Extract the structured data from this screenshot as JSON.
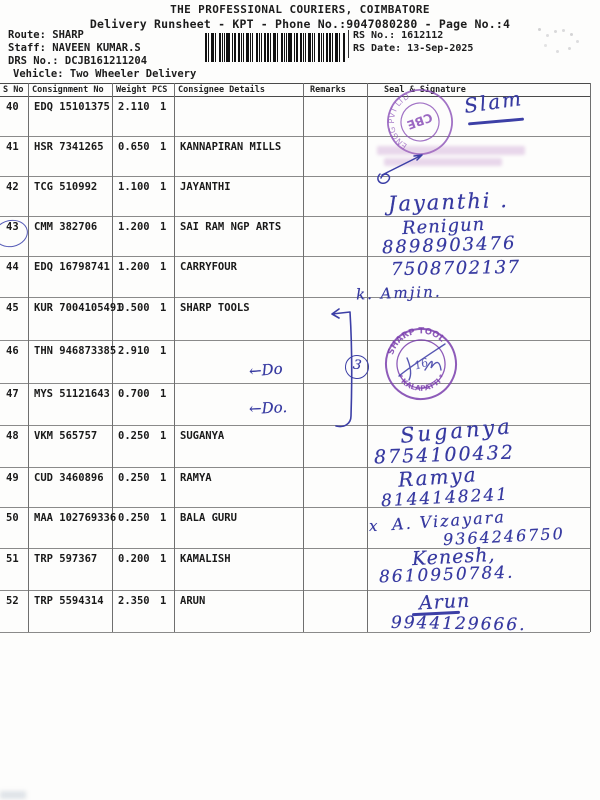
{
  "doc": {
    "title": "THE PROFESSIONAL COURIERS, COIMBATORE",
    "subtitle": "Delivery Runsheet - KPT - Phone No.:9047080280 - Page No.:4",
    "route_line": "Route: SHARP",
    "staff_line": "Staff: NAVEEN KUMAR.S",
    "drs_line": "DRS No.: DCJB161211204",
    "vehicle_line": "Vehicle: Two Wheeler Delivery",
    "rs_no_line": "RS No.: 1612112",
    "rs_date_line": "RS Date: 13-Sep-2025"
  },
  "table": {
    "headers": {
      "sno": "S No",
      "consignment": "Consignment No",
      "weight": "Weight",
      "pcs": "PCS",
      "consignee": "Consignee Details",
      "remarks": "Remarks",
      "seal": "Seal & Signature"
    },
    "rows": [
      {
        "sno": "40",
        "consignment": "EDQ 15101375",
        "weight": "2.110",
        "pcs": "1",
        "consignee": ""
      },
      {
        "sno": "41",
        "consignment": "HSR 7341265",
        "weight": "0.650",
        "pcs": "1",
        "consignee": "KANNAPIRAN MILLS"
      },
      {
        "sno": "42",
        "consignment": "TCG 510992",
        "weight": "1.100",
        "pcs": "1",
        "consignee": "JAYANTHI"
      },
      {
        "sno": "43",
        "consignment": "CMM 382706",
        "weight": "1.200",
        "pcs": "1",
        "consignee": "SAI RAM NGP ARTS"
      },
      {
        "sno": "44",
        "consignment": "EDQ 16798741",
        "weight": "1.200",
        "pcs": "1",
        "consignee": "CARRYFOUR"
      },
      {
        "sno": "45",
        "consignment": "KUR 7004105491",
        "weight": "0.500",
        "pcs": "1",
        "consignee": "SHARP TOOLS"
      },
      {
        "sno": "46",
        "consignment": "THN 946873385",
        "weight": "2.910",
        "pcs": "1",
        "consignee": ""
      },
      {
        "sno": "47",
        "consignment": "MYS 51121643",
        "weight": "0.700",
        "pcs": "1",
        "consignee": ""
      },
      {
        "sno": "48",
        "consignment": "VKM 565757",
        "weight": "0.250",
        "pcs": "1",
        "consignee": "SUGANYA"
      },
      {
        "sno": "49",
        "consignment": "CUD 3460896",
        "weight": "0.250",
        "pcs": "1",
        "consignee": "RAMYA"
      },
      {
        "sno": "50",
        "consignment": "MAA 102769336",
        "weight": "0.250",
        "pcs": "1",
        "consignee": "BALA GURU"
      },
      {
        "sno": "51",
        "consignment": "TRP 597367",
        "weight": "0.200",
        "pcs": "1",
        "consignee": "KAMALISH"
      },
      {
        "sno": "52",
        "consignment": "TRP 5594314",
        "weight": "2.350",
        "pcs": "1",
        "consignee": "ARUN"
      }
    ]
  },
  "handwriting": {
    "row40_signature": "Slam",
    "row42_signature": "Jayanthi .",
    "row43_signature": "Renigun",
    "row43_phone": "8898903476",
    "row44_phone": "7508702137",
    "row44_signature": "k. Amjin.",
    "row46_do": "←Do",
    "row47_do": "←Do.",
    "tally_count": "3",
    "row48_signature": "Suganya",
    "row48_phone": "8754100432",
    "row49_signature": "Ramya",
    "row49_phone": "8144148241",
    "row50_mark": "x",
    "row50_signature": "A. Vizayara",
    "row50_phone": "9364246750",
    "row51_signature": "Kenesh,",
    "row51_phone": "8610950784.",
    "row52_signature": "Arun",
    "row52_phone": "9944129666."
  },
  "stamps": {
    "stamp1_center": "CBE",
    "stamp1_ring": "ENGG PVT LTD",
    "stamp2_top": "SHARP TOOL",
    "stamp2_bottom": "* KALAPATTI *",
    "stamp2_center": "16"
  },
  "colors": {
    "ink_blue": "#373aa0",
    "stamp_purple": "#8b50b8",
    "paper": "#fdfdfc",
    "grid_line": "#8a8a8a"
  }
}
